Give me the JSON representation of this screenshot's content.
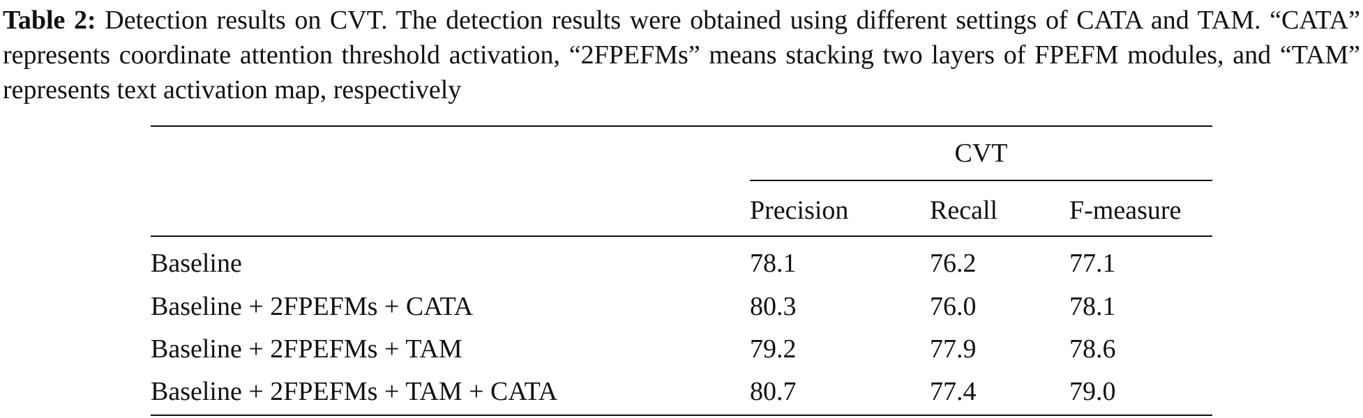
{
  "caption": {
    "label": "Table 2:",
    "text": "Detection results on CVT. The detection results were obtained using different settings of CATA and TAM. “CATA” represents coordinate attention threshold activation, “2FPEFMs” means stacking two layers of FPEFM modules, and “TAM” represents text activation map, respectively"
  },
  "table": {
    "group": "CVT",
    "columns": [
      "Precision",
      "Recall",
      "F-measure"
    ],
    "rows": [
      [
        "Baseline",
        "78.1",
        "76.2",
        "77.1"
      ],
      [
        "Baseline + 2FPEFMs + CATA",
        "80.3",
        "76.0",
        "78.1"
      ],
      [
        "Baseline + 2FPEFMs + TAM",
        "79.2",
        "77.9",
        "78.6"
      ],
      [
        "Baseline + 2FPEFMs + TAM + CATA",
        "80.7",
        "77.4",
        "79.0"
      ]
    ]
  }
}
